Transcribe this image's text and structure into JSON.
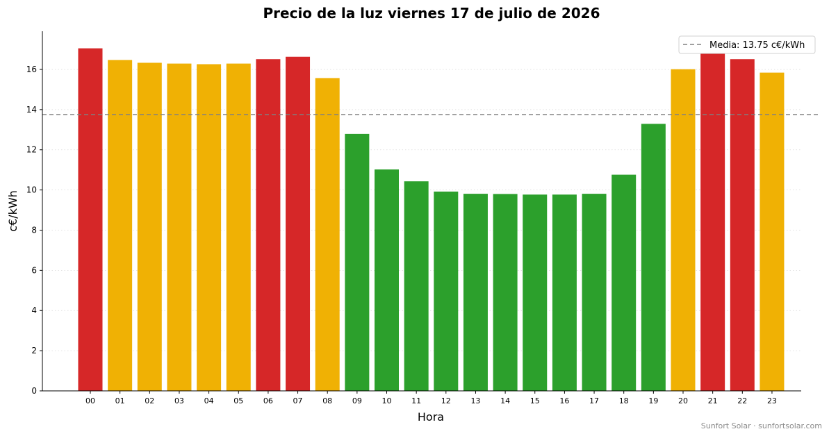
{
  "chart_data": {
    "type": "bar",
    "title": "Precio de la luz viernes 17 de julio de 2026",
    "xlabel": "Hora",
    "ylabel": "c€/kWh",
    "categories": [
      "00",
      "01",
      "02",
      "03",
      "04",
      "05",
      "06",
      "07",
      "08",
      "09",
      "10",
      "11",
      "12",
      "13",
      "14",
      "15",
      "16",
      "17",
      "18",
      "19",
      "20",
      "21",
      "22",
      "23"
    ],
    "values": [
      17.05,
      16.47,
      16.33,
      16.29,
      16.26,
      16.29,
      16.51,
      16.63,
      15.57,
      12.79,
      11.02,
      10.43,
      9.92,
      9.81,
      9.8,
      9.77,
      9.77,
      9.81,
      10.76,
      13.29,
      16.01,
      16.79,
      16.51,
      15.84
    ],
    "tier": [
      "high",
      "mid",
      "mid",
      "mid",
      "mid",
      "mid",
      "high",
      "high",
      "mid",
      "low",
      "low",
      "low",
      "low",
      "low",
      "low",
      "low",
      "low",
      "low",
      "low",
      "low",
      "mid",
      "high",
      "high",
      "mid"
    ],
    "colors": {
      "high": "#d62728",
      "mid": "#f0b104",
      "low": "#2ca02c"
    },
    "ylim": [
      0,
      17.9
    ],
    "yticks": [
      0,
      2,
      4,
      6,
      8,
      10,
      12,
      14,
      16
    ],
    "mean": 13.75,
    "mean_color": "#808080",
    "legend": {
      "label": "Media: 13.75 c€/kWh",
      "position": "top-right"
    },
    "grid": "y-dotted",
    "credit": "Sunfort Solar · sunfortsolar.com"
  }
}
